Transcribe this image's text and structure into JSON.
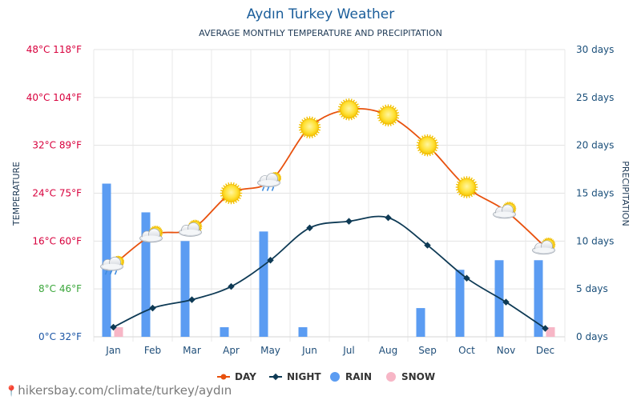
{
  "page": {
    "title": "Aydın Turkey Weather",
    "subtitle": "AVERAGE MONTHLY TEMPERATURE AND PRECIPITATION",
    "footer": "hikersbay.com/climate/turkey/aydın"
  },
  "chart_data": {
    "type": "line",
    "categories": [
      "Jan",
      "Feb",
      "Mar",
      "Apr",
      "May",
      "Jun",
      "Jul",
      "Aug",
      "Sep",
      "Oct",
      "Nov",
      "Dec"
    ],
    "series": [
      {
        "name": "DAY",
        "type": "line",
        "axis": "temperature",
        "unit": "°C",
        "color": "#e8510d",
        "values": [
          12,
          17,
          18,
          24,
          26,
          35,
          38,
          37,
          32,
          25,
          21,
          15
        ],
        "icons": [
          "cloud-rain",
          "cloud-sun",
          "cloud-sun",
          "sun",
          "cloud-rain",
          "sun",
          "sun",
          "sun",
          "sun",
          "sun",
          "cloud-sun",
          "cloud-sun"
        ]
      },
      {
        "name": "NIGHT",
        "type": "line",
        "axis": "temperature",
        "unit": "°C",
        "color": "#0e3a55",
        "values": [
          1.6,
          4.8,
          6.2,
          8.4,
          12.8,
          18.2,
          19.3,
          19.9,
          15.3,
          9.8,
          5.8,
          1.4
        ]
      },
      {
        "name": "RAIN",
        "type": "bar",
        "axis": "precipitation",
        "unit": "days",
        "color": "#5b9cf2",
        "values": [
          16,
          13,
          10,
          1,
          11,
          1,
          0,
          0,
          3,
          7,
          8,
          8
        ]
      },
      {
        "name": "SNOW",
        "type": "bar",
        "axis": "precipitation",
        "unit": "days",
        "color": "#f7b6c6",
        "values": [
          1,
          0,
          0,
          0,
          0,
          0,
          0,
          0,
          0,
          0,
          0,
          1
        ]
      }
    ],
    "y_left": {
      "label": "TEMPERATURE",
      "range": [
        0,
        48
      ],
      "ticks": [
        {
          "value": 0,
          "label": "0°C 32°F",
          "color": "#1b55a5"
        },
        {
          "value": 8,
          "label": "8°C 46°F",
          "color": "#3aa63a"
        },
        {
          "value": 16,
          "label": "16°C 60°F",
          "color": "#d8003d"
        },
        {
          "value": 24,
          "label": "24°C 75°F",
          "color": "#d8003d"
        },
        {
          "value": 32,
          "label": "32°C 89°F",
          "color": "#d8003d"
        },
        {
          "value": 40,
          "label": "40°C 104°F",
          "color": "#d8003d"
        },
        {
          "value": 48,
          "label": "48°C 118°F",
          "color": "#d8003d"
        }
      ]
    },
    "y_right": {
      "label": "PRECIPITATION",
      "range": [
        0,
        30
      ],
      "ticks": [
        {
          "value": 0,
          "label": "0 days"
        },
        {
          "value": 5,
          "label": "5 days"
        },
        {
          "value": 10,
          "label": "10 days"
        },
        {
          "value": 15,
          "label": "15 days"
        },
        {
          "value": 20,
          "label": "20 days"
        },
        {
          "value": 25,
          "label": "25 days"
        },
        {
          "value": 30,
          "label": "30 days"
        }
      ],
      "color": "#1a4f7a"
    },
    "grid": true,
    "legend": {
      "position": "bottom",
      "items": [
        {
          "label": "DAY",
          "color": "#e8510d",
          "marker": "line-dot"
        },
        {
          "label": "NIGHT",
          "color": "#0e3a55",
          "marker": "line-diamond"
        },
        {
          "label": "RAIN",
          "color": "#5b9cf2",
          "marker": "circle"
        },
        {
          "label": "SNOW",
          "color": "#f7b6c6",
          "marker": "circle"
        }
      ]
    }
  }
}
